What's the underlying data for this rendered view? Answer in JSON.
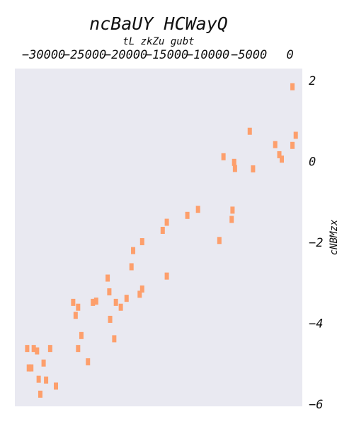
{
  "chart_data": {
    "type": "scatter",
    "title": "ncBaUY HCWayQ",
    "xlabel": "tL  zkZu gubt",
    "ylabel": "cNBMzx",
    "xlim": [
      -33500,
      1500
    ],
    "ylim": [
      -6.05,
      2.3
    ],
    "x_ticks": [
      -30000,
      -25000,
      -20000,
      -15000,
      -10000,
      -5000,
      0
    ],
    "x_tick_labels": [
      "−30000",
      "−25000",
      "−20000",
      "−15000",
      "−10000",
      "−5000",
      "0"
    ],
    "y_ticks": [
      2,
      0,
      -2,
      -4,
      -6
    ],
    "y_tick_labels": [
      "2",
      "0",
      "−2",
      "−4",
      "−6"
    ],
    "x_axis_position": "top",
    "y_axis_position": "right",
    "grid": false,
    "background": "#e9e9f1",
    "marker": "rect",
    "series": [
      {
        "color": "#fd9f6c",
        "points": [
          [
            -32000,
            -4.62
          ],
          [
            -31800,
            -5.1
          ],
          [
            -31500,
            -5.1
          ],
          [
            -31200,
            -4.62
          ],
          [
            -30800,
            -4.68
          ],
          [
            -30600,
            -5.38
          ],
          [
            -30400,
            -5.75
          ],
          [
            -30000,
            -4.98
          ],
          [
            -29700,
            -5.4
          ],
          [
            -29200,
            -4.62
          ],
          [
            -28500,
            -5.55
          ],
          [
            -26400,
            -3.48
          ],
          [
            -26100,
            -3.8
          ],
          [
            -25800,
            -3.6
          ],
          [
            -25800,
            -4.62
          ],
          [
            -25400,
            -4.3
          ],
          [
            -24600,
            -4.95
          ],
          [
            -24000,
            -3.48
          ],
          [
            -23600,
            -3.45
          ],
          [
            -22200,
            -2.88
          ],
          [
            -22000,
            -3.22
          ],
          [
            -21900,
            -3.9
          ],
          [
            -21400,
            -4.38
          ],
          [
            -21200,
            -3.48
          ],
          [
            -20600,
            -3.6
          ],
          [
            -19900,
            -3.38
          ],
          [
            -19300,
            -2.6
          ],
          [
            -19100,
            -2.2
          ],
          [
            -18300,
            -3.28
          ],
          [
            -18000,
            -3.15
          ],
          [
            -18000,
            -1.98
          ],
          [
            -15500,
            -1.7
          ],
          [
            -15000,
            -1.5
          ],
          [
            -15000,
            -2.83
          ],
          [
            -12500,
            -1.33
          ],
          [
            -11200,
            -1.18
          ],
          [
            -8600,
            -1.95
          ],
          [
            -8100,
            0.12
          ],
          [
            -7100,
            -1.43
          ],
          [
            -7000,
            -1.2
          ],
          [
            -6800,
            -0.02
          ],
          [
            -6700,
            -0.17
          ],
          [
            -4900,
            0.75
          ],
          [
            -4500,
            -0.18
          ],
          [
            -1800,
            0.42
          ],
          [
            -1300,
            0.17
          ],
          [
            -1000,
            0.06
          ],
          [
            300,
            0.4
          ],
          [
            300,
            1.85
          ],
          [
            700,
            0.65
          ]
        ]
      }
    ]
  }
}
